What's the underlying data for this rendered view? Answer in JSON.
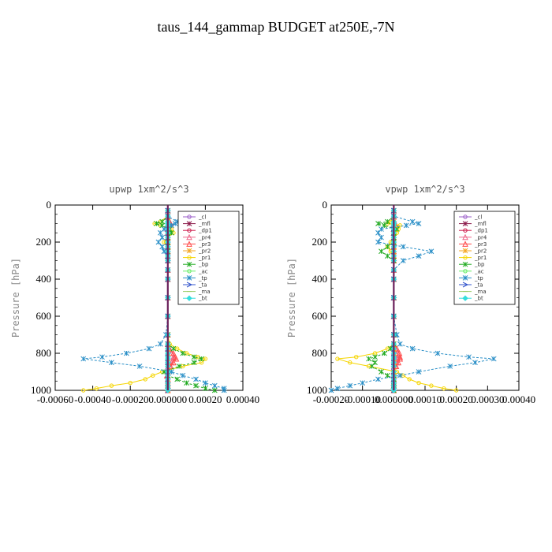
{
  "title": "taus_144_gammap  BUDGET at250E,-7N",
  "chart_data": [
    {
      "type": "line",
      "title": "upwp   1xm^2/s^3",
      "ylabel": "Pressure [hPa]",
      "xlabel": "",
      "xlim": [
        -0.0006,
        0.0004
      ],
      "ylim": [
        1000,
        0
      ],
      "y_reversed": true,
      "xticks": [
        -0.0006,
        -0.0004,
        -0.0002,
        0.0,
        0.0002,
        0.0004
      ],
      "xtick_labels": [
        "-0.00060",
        "-0.00040",
        "-0.00020",
        "0.000000",
        "0.00020",
        "0.00040"
      ],
      "yticks": [
        0,
        200,
        400,
        600,
        800,
        1000
      ],
      "ytick_labels": [
        "0",
        "200",
        "400",
        "600",
        "800",
        "1000"
      ],
      "legend_position": "top-right",
      "pressure": [
        30,
        60,
        90,
        100,
        110,
        130,
        150,
        175,
        200,
        225,
        250,
        275,
        300,
        350,
        400,
        500,
        600,
        700,
        750,
        775,
        800,
        820,
        830,
        850,
        870,
        900,
        920,
        940,
        960,
        975,
        990,
        1000
      ],
      "series": [
        {
          "name": "_cl",
          "color": "#9a5cc8",
          "marker": "circle",
          "values": [
            0,
            0,
            0,
            0,
            0,
            0,
            0,
            0,
            0,
            0,
            0,
            0,
            0,
            0,
            0,
            0,
            0,
            0,
            0,
            0,
            0,
            0,
            0,
            0,
            0,
            0,
            0,
            0,
            0,
            0,
            0,
            0
          ]
        },
        {
          "name": "_mfl",
          "color": "#8b1a4a",
          "marker": "star",
          "values": [
            0,
            0,
            0,
            0,
            0,
            0,
            0,
            0,
            0,
            0,
            0,
            0,
            0,
            0,
            0,
            0,
            0,
            0,
            0,
            0,
            0,
            0,
            0,
            0,
            0,
            0,
            0,
            0,
            0,
            0,
            0,
            0
          ]
        },
        {
          "name": "_dp1",
          "color": "#cc1a4a",
          "marker": "circle",
          "values": [
            0,
            0,
            0,
            0,
            0,
            0,
            0,
            0,
            0,
            0,
            0,
            0,
            0,
            0,
            0,
            0,
            0,
            0,
            0,
            0,
            0,
            0,
            0,
            0,
            0,
            0,
            0,
            0,
            0,
            0,
            0,
            0
          ]
        },
        {
          "name": "_pr4",
          "color": "#ee6688",
          "marker": "triangle",
          "values": [
            0,
            0,
            5e-06,
            8e-06,
            5e-06,
            0,
            0,
            0,
            0,
            0,
            0,
            0,
            0,
            0,
            0,
            0,
            0,
            0,
            0,
            0,
            2e-05,
            3e-05,
            3e-05,
            2e-05,
            1e-05,
            0,
            0,
            0,
            0,
            0,
            0,
            0
          ]
        },
        {
          "name": "_pr3",
          "color": "#ff4d4d",
          "marker": "triangle",
          "values": [
            0,
            0,
            1e-05,
            1.5e-05,
            1e-05,
            0,
            0,
            0,
            0,
            0,
            0,
            0,
            0,
            0,
            0,
            0,
            0,
            0,
            0,
            1e-05,
            3e-05,
            4e-05,
            4.5e-05,
            3e-05,
            1.5e-05,
            0,
            -5e-06,
            0,
            0,
            0,
            0,
            0
          ]
        },
        {
          "name": "_pr2",
          "color": "#f5a623",
          "marker": "star",
          "values": [
            0,
            0,
            0,
            0,
            0,
            0,
            0,
            0,
            0,
            0,
            0,
            0,
            0,
            0,
            0,
            0,
            0,
            0,
            0,
            0,
            0,
            0,
            0,
            0,
            0,
            0,
            0,
            0,
            0,
            0,
            0,
            0
          ]
        },
        {
          "name": "_pr1",
          "color": "#f5d500",
          "marker": "circle",
          "values": [
            0,
            0,
            -4e-05,
            -7e-05,
            -4e-05,
            2e-05,
            3e-05,
            0,
            -2e-05,
            0,
            0,
            0,
            0,
            0,
            0,
            0,
            0,
            0,
            1e-05,
            5e-05,
            0.0001,
            0.00016,
            0.0002,
            0.00018,
            8e-05,
            -3e-05,
            -8e-05,
            -0.00012,
            -0.0002,
            -0.0003,
            -0.00038,
            -0.00045
          ]
        },
        {
          "name": "_bp",
          "color": "#22aa22",
          "marker": "star",
          "values": [
            0,
            0,
            -3e-05,
            -6e-05,
            -3e-05,
            1e-05,
            2e-05,
            0,
            0,
            0,
            0,
            0,
            0,
            0,
            0,
            0,
            0,
            0,
            0,
            3e-05,
            8e-05,
            0.00014,
            0.00018,
            0.00014,
            6e-05,
            -2e-05,
            0,
            5e-05,
            0.0001,
            0.00015,
            0.0002,
            0.00025
          ]
        },
        {
          "name": "_ac",
          "color": "#66ee66",
          "marker": "circle",
          "values": [
            0,
            0,
            0,
            0,
            0,
            0,
            0,
            0,
            0,
            0,
            0,
            0,
            0,
            0,
            0,
            0,
            0,
            0,
            0,
            0,
            0,
            0,
            0,
            0,
            0,
            0,
            0,
            0,
            0,
            0,
            0,
            0
          ]
        },
        {
          "name": "_tp",
          "color": "#2a8fc7",
          "marker": "cross",
          "values": [
            0,
            0,
            5e-05,
            4e-05,
            2e-05,
            -2e-05,
            -4e-05,
            -3e-05,
            -5e-05,
            -3e-05,
            -2e-05,
            0,
            0,
            0,
            0,
            0,
            0,
            -1e-05,
            -4e-05,
            -0.0001,
            -0.00022,
            -0.00035,
            -0.00045,
            -0.0003,
            -0.00015,
            2e-05,
            8e-05,
            0.00015,
            0.0002,
            0.00025,
            0.0003,
            0.0003
          ]
        },
        {
          "name": "_ta",
          "color": "#3355cc",
          "marker": "arrow",
          "values": [
            0,
            0,
            0,
            0,
            0,
            0,
            0,
            0,
            0,
            0,
            0,
            0,
            0,
            0,
            0,
            0,
            0,
            0,
            0,
            0,
            0,
            0,
            0,
            0,
            0,
            0,
            0,
            0,
            0,
            0,
            0,
            0
          ]
        },
        {
          "name": "_ma",
          "color": "#99cc66",
          "marker": "line",
          "values": [
            0,
            0,
            0,
            0,
            0,
            0,
            0,
            0,
            0,
            0,
            0,
            0,
            0,
            0,
            0,
            0,
            0,
            0,
            0,
            0,
            0,
            0,
            0,
            0,
            0,
            0,
            0,
            0,
            0,
            0,
            0,
            0
          ]
        },
        {
          "name": "_bt",
          "color": "#33dddd",
          "marker": "diamond",
          "values": [
            0,
            0,
            0,
            0,
            0,
            0,
            0,
            0,
            0,
            0,
            0,
            0,
            0,
            0,
            0,
            0,
            0,
            0,
            0,
            0,
            0,
            0,
            0,
            0,
            0,
            0,
            0,
            0,
            0,
            0,
            0,
            0
          ]
        }
      ]
    },
    {
      "type": "line",
      "title": "vpwp   1xm^2/s^3",
      "ylabel": "Pressure [hPa]",
      "xlabel": "",
      "xlim": [
        -0.0002,
        0.0004
      ],
      "ylim": [
        1000,
        0
      ],
      "y_reversed": true,
      "xticks": [
        -0.0002,
        -0.0001,
        0.0,
        0.0001,
        0.0002,
        0.0003,
        0.0004
      ],
      "xtick_labels": [
        "-0.00020",
        "-0.00010",
        "0.000000",
        "0.00010",
        "0.00020",
        "0.00030",
        "0.00040"
      ],
      "yticks": [
        0,
        200,
        400,
        600,
        800,
        1000
      ],
      "ytick_labels": [
        "0",
        "200",
        "400",
        "600",
        "800",
        "1000"
      ],
      "legend_position": "top-right",
      "pressure": [
        30,
        60,
        90,
        100,
        110,
        130,
        150,
        175,
        200,
        225,
        250,
        275,
        300,
        350,
        400,
        500,
        600,
        700,
        750,
        775,
        800,
        820,
        830,
        850,
        870,
        900,
        920,
        940,
        960,
        975,
        990,
        1000
      ],
      "series": [
        {
          "name": "_cl",
          "color": "#9a5cc8",
          "marker": "circle",
          "values": [
            0,
            0,
            0,
            0,
            0,
            0,
            0,
            0,
            0,
            0,
            0,
            0,
            0,
            0,
            0,
            0,
            0,
            0,
            0,
            0,
            0,
            0,
            0,
            0,
            0,
            0,
            0,
            0,
            0,
            0,
            0,
            0
          ]
        },
        {
          "name": "_mfl",
          "color": "#8b1a4a",
          "marker": "star",
          "values": [
            0,
            0,
            0,
            0,
            0,
            0,
            0,
            0,
            0,
            0,
            0,
            0,
            0,
            0,
            0,
            0,
            0,
            0,
            0,
            0,
            0,
            0,
            0,
            0,
            0,
            0,
            0,
            0,
            0,
            0,
            0,
            0
          ]
        },
        {
          "name": "_dp1",
          "color": "#cc1a4a",
          "marker": "circle",
          "values": [
            0,
            0,
            0,
            0,
            0,
            0,
            0,
            0,
            0,
            0,
            0,
            0,
            0,
            0,
            0,
            0,
            0,
            0,
            0,
            0,
            0,
            0,
            0,
            0,
            0,
            0,
            0,
            0,
            0,
            0,
            0,
            0
          ]
        },
        {
          "name": "_pr4",
          "color": "#ee6688",
          "marker": "triangle",
          "values": [
            0,
            0,
            0,
            0,
            0,
            0,
            0,
            0,
            0,
            0,
            0,
            0,
            0,
            0,
            0,
            0,
            0,
            0,
            0,
            5e-06,
            1e-05,
            1.2e-05,
            1.2e-05,
            1e-05,
            5e-06,
            0,
            0,
            0,
            0,
            0,
            0,
            0
          ]
        },
        {
          "name": "_pr3",
          "color": "#ff4d4d",
          "marker": "triangle",
          "values": [
            0,
            0,
            0,
            5e-06,
            0,
            0,
            0,
            0,
            0,
            0,
            0,
            0,
            0,
            0,
            0,
            0,
            0,
            0,
            0,
            1e-05,
            1.8e-05,
            2e-05,
            2e-05,
            1.5e-05,
            8e-06,
            0,
            0,
            0,
            0,
            0,
            0,
            0
          ]
        },
        {
          "name": "_pr2",
          "color": "#f5a623",
          "marker": "star",
          "values": [
            0,
            0,
            0,
            0,
            0,
            0,
            0,
            0,
            0,
            0,
            0,
            0,
            0,
            0,
            0,
            0,
            0,
            0,
            0,
            0,
            0,
            0,
            0,
            0,
            0,
            0,
            0,
            0,
            0,
            0,
            0,
            0
          ]
        },
        {
          "name": "_pr1",
          "color": "#f5d500",
          "marker": "circle",
          "values": [
            0,
            0,
            -1e-05,
            -2e-05,
            2e-05,
            1.5e-05,
            1e-05,
            0,
            -1e-05,
            -2e-05,
            -1e-05,
            0,
            0,
            0,
            0,
            0,
            0,
            0,
            0,
            -2e-05,
            -6e-05,
            -0.00012,
            -0.00018,
            -0.00014,
            -8e-05,
            1e-05,
            3e-05,
            5e-05,
            8e-05,
            0.00012,
            0.00016,
            0.0002
          ]
        },
        {
          "name": "_bp",
          "color": "#22aa22",
          "marker": "star",
          "values": [
            0,
            0,
            -2e-05,
            -5e-05,
            -3e-05,
            1e-05,
            0,
            0,
            0,
            -2e-05,
            -4e-05,
            -2e-05,
            0,
            0,
            0,
            0,
            0,
            0,
            0,
            -1e-05,
            -3e-05,
            -6e-05,
            -8e-05,
            -6e-05,
            -7e-05,
            -4e-05,
            -2e-05,
            0,
            0,
            0,
            0,
            0
          ]
        },
        {
          "name": "_ac",
          "color": "#66ee66",
          "marker": "circle",
          "values": [
            0,
            0,
            0,
            0,
            0,
            0,
            0,
            0,
            0,
            0,
            0,
            0,
            0,
            0,
            0,
            0,
            0,
            0,
            0,
            0,
            0,
            0,
            0,
            0,
            0,
            0,
            0,
            0,
            0,
            0,
            0,
            0
          ]
        },
        {
          "name": "_tp",
          "color": "#2a8fc7",
          "marker": "cross",
          "values": [
            0,
            0,
            6e-05,
            8e-05,
            4e-05,
            -4e-05,
            -5e-05,
            -4e-05,
            -5e-05,
            3e-05,
            0.00012,
            8e-05,
            3e-05,
            0,
            0,
            0,
            0,
            1e-05,
            2e-05,
            6e-05,
            0.00014,
            0.00024,
            0.00032,
            0.00026,
            0.00018,
            8e-05,
            2e-05,
            -5e-05,
            -0.0001,
            -0.00014,
            -0.00018,
            -0.0002
          ]
        },
        {
          "name": "_ta",
          "color": "#3355cc",
          "marker": "arrow",
          "values": [
            0,
            0,
            0,
            0,
            0,
            0,
            0,
            0,
            0,
            0,
            0,
            0,
            0,
            0,
            0,
            0,
            0,
            0,
            0,
            0,
            0,
            0,
            0,
            0,
            0,
            0,
            0,
            0,
            0,
            0,
            0,
            0
          ]
        },
        {
          "name": "_ma",
          "color": "#99cc66",
          "marker": "line",
          "values": [
            0,
            0,
            0,
            0,
            0,
            0,
            0,
            0,
            0,
            0,
            0,
            0,
            0,
            0,
            0,
            0,
            0,
            0,
            0,
            0,
            0,
            0,
            0,
            0,
            0,
            0,
            0,
            0,
            0,
            0,
            0,
            0
          ]
        },
        {
          "name": "_bt",
          "color": "#33dddd",
          "marker": "diamond",
          "values": [
            0,
            0,
            0,
            0,
            0,
            0,
            0,
            0,
            0,
            0,
            0,
            0,
            0,
            0,
            0,
            0,
            0,
            0,
            0,
            0,
            0,
            0,
            0,
            0,
            0,
            0,
            0,
            0,
            0,
            0,
            0,
            0
          ]
        }
      ]
    }
  ]
}
